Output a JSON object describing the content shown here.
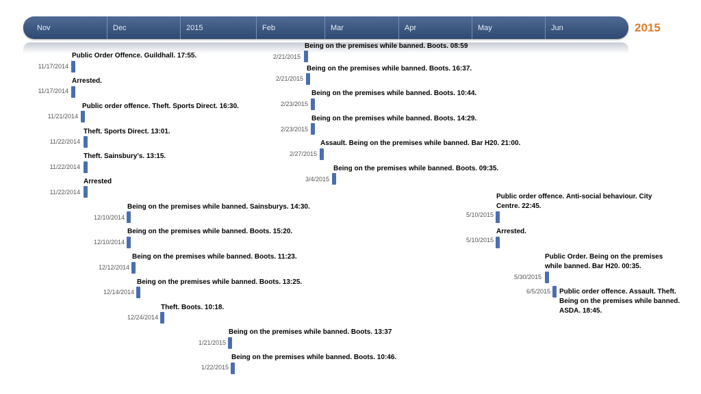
{
  "header": {
    "months": [
      "Nov",
      "Dec",
      "2015",
      "Feb",
      "Mar",
      "Apr",
      "May",
      "Jun"
    ],
    "year": "2015",
    "colors": {
      "bar": "#3d5a84",
      "year": "#e07b2a",
      "tick": "#4a6fb0"
    }
  },
  "events": [
    {
      "date": "11/17/2014",
      "label": "Public Order Offence. Guildhall. 17:55."
    },
    {
      "date": "11/17/2014",
      "label": "Arrested."
    },
    {
      "date": "11/21/2014",
      "label": "Public order offence. Theft. Sports Direct. 16:30."
    },
    {
      "date": "11/22/2014",
      "label": "Theft. Sports Direct. 13:01."
    },
    {
      "date": "11/22/2014",
      "label": "Theft. Sainsbury's. 13:15."
    },
    {
      "date": "11/22/2014",
      "label": "Arrested"
    },
    {
      "date": "12/10/2014",
      "label": "Being on the premises while banned. Sainsburys. 14:30."
    },
    {
      "date": "12/10/2014",
      "label": "Being on the premises while banned. Boots. 15:20."
    },
    {
      "date": "12/12/2014",
      "label": "Being on the premises while banned. Boots. 11:23."
    },
    {
      "date": "12/14/2014",
      "label": "Being on the premises while banned. Boots. 13:25."
    },
    {
      "date": "12/24/2014",
      "label": "Theft. Boots. 10:18."
    },
    {
      "date": "1/21/2015",
      "label": "Being on the premises while banned. Boots. 13:37"
    },
    {
      "date": "1/22/2015",
      "label": "Being on the premises while banned. Boots. 10:46."
    },
    {
      "date": "2/21/2015",
      "label": "Being on the premises while banned. Boots. 08:59"
    },
    {
      "date": "2/21/2015",
      "label": "Being on the premises while banned. Boots. 16:37."
    },
    {
      "date": "2/23/2015",
      "label": "Being on the premises while banned. Boots. 10:44."
    },
    {
      "date": "2/23/2015",
      "label": "Being on the premises while banned. Boots. 14:29."
    },
    {
      "date": "2/27/2015",
      "label": "Assault. Being on the premises while banned. Bar H20. 21:00."
    },
    {
      "date": "3/4/2015",
      "label": "Being on the premises while banned. Boots. 09:35."
    },
    {
      "date": "5/10/2015",
      "label": "Public order offence. Anti-social behaviour. City Centre. 22:45."
    },
    {
      "date": "5/10/2015",
      "label": "Arrested."
    },
    {
      "date": "5/30/2015",
      "label": "Public Order. Being on the premises while banned. Bar H20. 00:35."
    },
    {
      "date": "6/5/2015",
      "label": "Public order offence. Assault. Theft. Being on the premises while banned. ASDA. 18:45."
    }
  ]
}
